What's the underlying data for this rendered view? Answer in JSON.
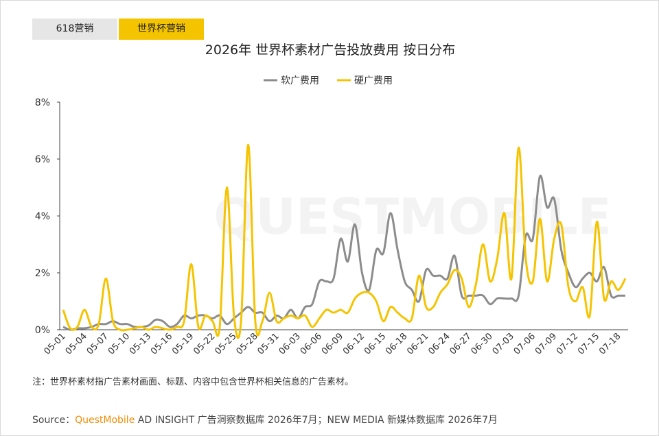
{
  "tabs": [
    "618营销",
    "世界杯营销"
  ],
  "watermark": "QUESTMOBILE",
  "note": "注：世界杯素材指广告素材画面、标题、内容中包含世界杯相关信息的广告素材。",
  "source": {
    "prefix": "Source：",
    "brand": "QuestMobile",
    "text": " AD INSIGHT 广告洞察数据库 2026年7月；NEW MEDIA 新媒体数据库 2026年7月"
  },
  "chart_data": {
    "type": "line",
    "title": "2026年 世界杯素材广告投放费用 按日分布",
    "categories": [
      "05-01",
      null,
      null,
      "05-04",
      null,
      null,
      "05-07",
      null,
      null,
      "05-10",
      null,
      null,
      "05-13",
      null,
      null,
      "05-16",
      null,
      null,
      "05-19",
      null,
      null,
      "05-22",
      null,
      null,
      "05-25",
      null,
      null,
      "05-28",
      null,
      null,
      "05-31",
      null,
      null,
      "06-03",
      null,
      null,
      "06-06",
      null,
      null,
      "06-09",
      null,
      null,
      "06-12",
      null,
      null,
      "06-15",
      null,
      null,
      "06-18",
      null,
      null,
      "06-21",
      null,
      null,
      "06-24",
      null,
      null,
      "06-27",
      null,
      null,
      "06-30",
      null,
      null,
      "07-03",
      null,
      null,
      "07-06",
      null,
      null,
      "07-09",
      null,
      null,
      "07-12",
      null,
      null,
      "07-15",
      null,
      null,
      "07-18",
      null
    ],
    "series": [
      {
        "name": "软广费用",
        "color": "#8c8c8c",
        "values": [
          0.1,
          0.0,
          0.05,
          0.05,
          0.1,
          0.2,
          0.2,
          0.3,
          0.2,
          0.2,
          0.1,
          0.1,
          0.15,
          0.35,
          0.3,
          0.1,
          0.2,
          0.5,
          0.4,
          0.5,
          0.5,
          0.4,
          0.5,
          0.2,
          0.4,
          0.6,
          0.8,
          0.6,
          0.6,
          0.3,
          0.5,
          0.4,
          0.7,
          0.4,
          0.8,
          0.9,
          1.7,
          1.7,
          1.8,
          3.2,
          2.4,
          3.7,
          2.0,
          1.4,
          2.8,
          2.7,
          4.1,
          2.8,
          1.7,
          1.4,
          1.0,
          2.1,
          1.9,
          1.9,
          1.8,
          2.6,
          1.2,
          1.2,
          1.2,
          1.2,
          0.9,
          1.1,
          1.1,
          1.1,
          1.2,
          3.3,
          3.2,
          5.4,
          4.3,
          4.6,
          2.8,
          2.0,
          1.5,
          1.8,
          2.0,
          1.7,
          2.2,
          1.2,
          1.2,
          1.2
        ]
      },
      {
        "name": "硬广费用",
        "color": "#f5c400",
        "values": [
          0.7,
          0.05,
          0.1,
          0.7,
          0.1,
          0.2,
          1.8,
          0.3,
          0.0,
          0.0,
          0.05,
          0.1,
          0.0,
          0.1,
          0.05,
          0.0,
          0.1,
          0.3,
          2.3,
          0.1,
          0.5,
          0.3,
          0.1,
          5.0,
          0.5,
          0.3,
          6.5,
          0.3,
          0.3,
          1.3,
          0.3,
          0.4,
          0.5,
          0.4,
          0.5,
          0.1,
          0.4,
          0.7,
          0.6,
          0.7,
          0.6,
          1.1,
          1.3,
          1.3,
          1.0,
          0.3,
          0.8,
          0.6,
          0.4,
          0.4,
          1.9,
          0.8,
          0.8,
          1.3,
          1.6,
          2.1,
          1.8,
          0.8,
          1.6,
          3.0,
          1.7,
          2.5,
          4.1,
          1.8,
          6.4,
          2.5,
          1.7,
          3.9,
          1.7,
          3.2,
          3.7,
          1.5,
          1.0,
          1.5,
          0.5,
          3.8,
          1.1,
          1.7,
          1.4,
          1.8
        ]
      }
    ],
    "ylim": [
      0,
      8
    ],
    "yticks": [
      {
        "value": 0,
        "label": "0%"
      },
      {
        "value": 2,
        "label": "2%"
      },
      {
        "value": 4,
        "label": "4%"
      },
      {
        "value": 6,
        "label": "6%"
      },
      {
        "value": 8,
        "label": "8%"
      }
    ],
    "grid": false
  }
}
